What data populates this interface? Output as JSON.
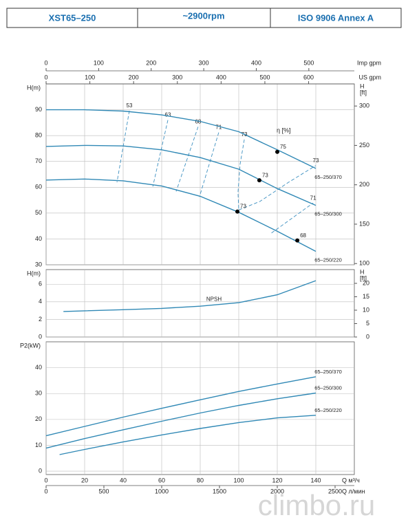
{
  "header": {
    "model": "XST65–250",
    "speed": "~2900rpm",
    "standard": "ISO 9906   Annex A"
  },
  "watermark": "climbo.ru",
  "chart_data": [
    {
      "type": "line",
      "ylabel": "H(m)",
      "y2label": [
        "H",
        "[ft]"
      ],
      "annotation": "η [%]",
      "xlim": [
        0,
        160
      ],
      "xticks": [
        0,
        20,
        40,
        60,
        80,
        100,
        120,
        140
      ],
      "ylim": [
        30,
        100
      ],
      "yticks": [
        30,
        40,
        50,
        60,
        70,
        80,
        90
      ],
      "y2lim": [
        98.43,
        328.08
      ],
      "y2ticks": [
        100,
        150,
        200,
        250,
        300
      ],
      "grid": true,
      "top_axes": [
        {
          "label": "Imp gpm",
          "xlim": [
            0,
            586.6
          ],
          "xticks": [
            0,
            100,
            200,
            300,
            400,
            500
          ]
        },
        {
          "label": "US gpm",
          "xlim": [
            0,
            704.5
          ],
          "xticks": [
            0,
            100,
            200,
            300,
            400,
            500,
            600
          ]
        }
      ],
      "series": [
        {
          "name": "65–250/370",
          "color": "#2f88b5",
          "x": [
            0,
            20,
            40,
            60,
            80,
            100,
            120,
            140
          ],
          "values": [
            90,
            90,
            89.5,
            88,
            85.5,
            81.5,
            74.5,
            67.3
          ]
        },
        {
          "name": "65–250/300",
          "color": "#2f88b5",
          "x": [
            0,
            20,
            40,
            60,
            80,
            100,
            120,
            140
          ],
          "values": [
            75.8,
            76.2,
            76,
            74.5,
            71.5,
            67,
            59.5,
            53
          ]
        },
        {
          "name": "65–250/220",
          "color": "#2f88b5",
          "x": [
            0,
            20,
            40,
            60,
            80,
            100,
            120,
            140
          ],
          "values": [
            62.8,
            63.2,
            62.5,
            60.5,
            56.5,
            50.3,
            43,
            35.2
          ]
        }
      ],
      "contours": [
        {
          "label": 53,
          "x": [
            43.2,
            36.8
          ],
          "y": [
            89.6,
            61.9
          ]
        },
        {
          "label": 63,
          "x": [
            63.2,
            55.4
          ],
          "y": [
            86,
            60.3
          ]
        },
        {
          "label": 68,
          "x": [
            78.9,
            67.5
          ],
          "y": [
            83.4,
            58.4
          ]
        },
        {
          "label": 71,
          "x": [
            89.6,
            79.6
          ],
          "y": [
            81.2,
            56.3
          ]
        },
        {
          "label": 73,
          "x": [
            102.9,
            100.7,
            99.6,
            100
          ],
          "y": [
            78.5,
            69,
            58,
            51.2
          ]
        },
        {
          "label": 73,
          "x": [
            100,
            111,
            126,
            140
          ],
          "y": [
            51.2,
            54.5,
            62,
            68.4
          ]
        },
        {
          "label": 71,
          "x": [
            117,
            138.6
          ],
          "y": [
            42.3,
            53.9
          ]
        }
      ],
      "duty_points": [
        {
          "x": 120,
          "y": 73.7,
          "label": 75
        },
        {
          "x": 110.7,
          "y": 62.7,
          "label": 73
        },
        {
          "x": 99.3,
          "y": 50.6,
          "label": 73
        },
        {
          "x": 130.4,
          "y": 39.4,
          "label": 68
        }
      ]
    },
    {
      "type": "line",
      "ylabel": "H(m)",
      "y2label": [
        "H",
        "[ft]"
      ],
      "xlim": [
        0,
        160
      ],
      "xticks": [
        0,
        20,
        40,
        60,
        80,
        100,
        120,
        140
      ],
      "ylim": [
        0,
        7.66
      ],
      "yticks": [
        0,
        2,
        4,
        6
      ],
      "y2lim": [
        0,
        25.13
      ],
      "y2ticks": [
        0,
        5,
        10,
        15,
        20
      ],
      "grid": true,
      "series": [
        {
          "name": "NPSH",
          "color": "#2f88b5",
          "x": [
            9,
            40,
            60,
            80,
            100,
            120,
            140
          ],
          "values": [
            2.9,
            3.1,
            3.25,
            3.5,
            3.9,
            4.8,
            6.4
          ]
        }
      ]
    },
    {
      "type": "line",
      "ylabel": "P2(kW)",
      "xlabel": "Q м³/ч",
      "xlim": [
        0,
        160
      ],
      "xticks": [
        0,
        20,
        40,
        60,
        80,
        100,
        120,
        140
      ],
      "ylim": [
        -1.3,
        50
      ],
      "yticks": [
        0,
        10,
        20,
        30,
        40
      ],
      "grid": true,
      "bottom_axes": [
        {
          "label": "Q л/мин",
          "xlim": [
            0,
            2666.7
          ],
          "xticks": [
            0,
            500,
            1000,
            1500,
            2000,
            2500
          ]
        }
      ],
      "series": [
        {
          "name": "65–250/370",
          "color": "#2f88b5",
          "x": [
            0,
            20,
            40,
            60,
            80,
            100,
            120,
            140
          ],
          "values": [
            13.7,
            17.3,
            20.9,
            24.3,
            27.6,
            30.8,
            33.7,
            36.5
          ]
        },
        {
          "name": "65–250/300",
          "color": "#2f88b5",
          "x": [
            0,
            20,
            40,
            60,
            80,
            100,
            120,
            140
          ],
          "values": [
            8.9,
            12.6,
            16,
            19.3,
            22.5,
            25.4,
            28,
            30.2
          ]
        },
        {
          "name": "65–250/220",
          "color": "#2f88b5",
          "x": [
            7,
            20,
            40,
            60,
            80,
            100,
            120,
            140
          ],
          "values": [
            6.4,
            8.4,
            11.3,
            14,
            16.5,
            18.8,
            20.6,
            21.6
          ]
        }
      ]
    }
  ]
}
